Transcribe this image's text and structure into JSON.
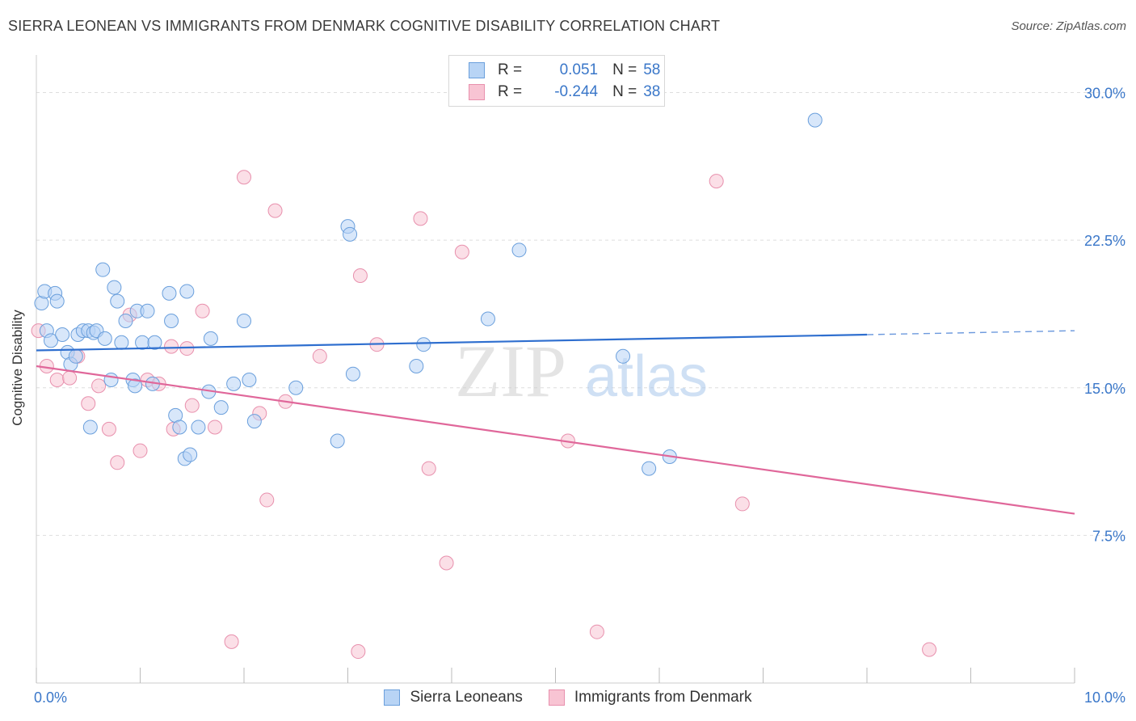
{
  "title": "SIERRA LEONEAN VS IMMIGRANTS FROM DENMARK COGNITIVE DISABILITY CORRELATION CHART",
  "source": "Source: ZipAtlas.com",
  "watermark": {
    "zip": "ZIP",
    "atlas": "atlas"
  },
  "legend_top": {
    "rows": [
      {
        "r_label": "R =",
        "r_value": "0.051",
        "n_label": "N =",
        "n_value": "58"
      },
      {
        "r_label": "R =",
        "r_value": "-0.244",
        "n_label": "N =",
        "n_value": "38"
      }
    ]
  },
  "legend_bottom": [
    "Sierra Leoneans",
    "Immigrants from Denmark"
  ],
  "colors": {
    "blue_fill": "#b8d4f5",
    "blue_stroke": "#6a9fdc",
    "blue_line": "#2f6fcf",
    "pink_fill": "#f8c4d3",
    "pink_stroke": "#e890ad",
    "pink_line": "#e0679a",
    "axis_text": "#3a77c9",
    "grid": "#dedede"
  },
  "chart_data": {
    "type": "scatter",
    "title": "SIERRA LEONEAN VS IMMIGRANTS FROM DENMARK COGNITIVE DISABILITY CORRELATION CHART",
    "xlabel": "",
    "ylabel": "Cognitive Disability",
    "xlim": [
      0,
      10
    ],
    "ylim": [
      0,
      31.5
    ],
    "x_tick_labels": [
      "0.0%",
      "10.0%"
    ],
    "y_ticks": [
      7.5,
      15.0,
      22.5,
      30.0
    ],
    "y_tick_labels": [
      "7.5%",
      "15.0%",
      "22.5%",
      "30.0%"
    ],
    "grid": true,
    "legend_position": "top-center",
    "series": [
      {
        "name": "Sierra Leoneans",
        "color": "#6a9fdc",
        "trend": {
          "x": [
            0,
            8.0
          ],
          "y": [
            16.9,
            17.7
          ],
          "dashed_extension_to": [
            10.0,
            17.9
          ]
        },
        "points": [
          [
            0.05,
            19.3
          ],
          [
            0.08,
            19.9
          ],
          [
            0.1,
            17.9
          ],
          [
            0.14,
            17.4
          ],
          [
            0.18,
            19.8
          ],
          [
            0.2,
            19.4
          ],
          [
            0.25,
            17.7
          ],
          [
            0.3,
            16.8
          ],
          [
            0.33,
            16.2
          ],
          [
            0.38,
            16.6
          ],
          [
            0.4,
            17.7
          ],
          [
            0.45,
            17.9
          ],
          [
            0.5,
            17.9
          ],
          [
            0.55,
            17.8
          ],
          [
            0.58,
            17.9
          ],
          [
            0.64,
            21.0
          ],
          [
            0.66,
            17.5
          ],
          [
            0.72,
            15.4
          ],
          [
            0.75,
            20.1
          ],
          [
            0.78,
            19.4
          ],
          [
            0.82,
            17.3
          ],
          [
            0.86,
            18.4
          ],
          [
            0.93,
            15.4
          ],
          [
            0.95,
            15.1
          ],
          [
            0.97,
            18.9
          ],
          [
            1.02,
            17.3
          ],
          [
            1.07,
            18.9
          ],
          [
            1.12,
            15.2
          ],
          [
            1.14,
            17.3
          ],
          [
            1.28,
            19.8
          ],
          [
            1.3,
            18.4
          ],
          [
            1.34,
            13.6
          ],
          [
            1.38,
            13.0
          ],
          [
            1.45,
            19.9
          ],
          [
            1.43,
            11.4
          ],
          [
            1.48,
            11.6
          ],
          [
            1.56,
            13.0
          ],
          [
            1.66,
            14.8
          ],
          [
            1.68,
            17.5
          ],
          [
            1.78,
            14.0
          ],
          [
            1.9,
            15.2
          ],
          [
            2.0,
            18.4
          ],
          [
            2.05,
            15.4
          ],
          [
            2.1,
            13.3
          ],
          [
            2.5,
            15.0
          ],
          [
            2.9,
            12.3
          ],
          [
            3.0,
            23.2
          ],
          [
            3.02,
            22.8
          ],
          [
            3.05,
            15.7
          ],
          [
            3.66,
            16.1
          ],
          [
            3.73,
            17.2
          ],
          [
            4.35,
            18.5
          ],
          [
            4.65,
            22.0
          ],
          [
            5.65,
            16.6
          ],
          [
            5.9,
            10.9
          ],
          [
            6.1,
            11.5
          ],
          [
            7.5,
            28.6
          ],
          [
            0.52,
            13.0
          ]
        ]
      },
      {
        "name": "Immigrants from Denmark",
        "color": "#e890ad",
        "trend": {
          "x": [
            0,
            10.0
          ],
          "y": [
            16.1,
            8.6
          ]
        },
        "points": [
          [
            0.02,
            17.9
          ],
          [
            0.1,
            16.1
          ],
          [
            0.2,
            15.4
          ],
          [
            0.32,
            15.5
          ],
          [
            0.4,
            16.6
          ],
          [
            0.5,
            14.2
          ],
          [
            0.6,
            15.1
          ],
          [
            0.7,
            12.9
          ],
          [
            0.78,
            11.2
          ],
          [
            0.9,
            18.7
          ],
          [
            1.0,
            11.8
          ],
          [
            1.07,
            15.4
          ],
          [
            1.18,
            15.2
          ],
          [
            1.3,
            17.1
          ],
          [
            1.32,
            12.9
          ],
          [
            1.45,
            17.0
          ],
          [
            1.5,
            14.1
          ],
          [
            1.6,
            18.9
          ],
          [
            1.72,
            13.0
          ],
          [
            1.88,
            2.1
          ],
          [
            2.0,
            25.7
          ],
          [
            2.15,
            13.7
          ],
          [
            2.22,
            9.3
          ],
          [
            2.3,
            24.0
          ],
          [
            2.4,
            14.3
          ],
          [
            2.73,
            16.6
          ],
          [
            3.1,
            1.6
          ],
          [
            3.12,
            20.7
          ],
          [
            3.28,
            17.2
          ],
          [
            3.7,
            23.6
          ],
          [
            3.78,
            10.9
          ],
          [
            3.95,
            6.1
          ],
          [
            4.1,
            21.9
          ],
          [
            5.12,
            12.3
          ],
          [
            5.4,
            2.6
          ],
          [
            6.55,
            25.5
          ],
          [
            6.8,
            9.1
          ],
          [
            8.6,
            1.7
          ]
        ]
      }
    ]
  }
}
